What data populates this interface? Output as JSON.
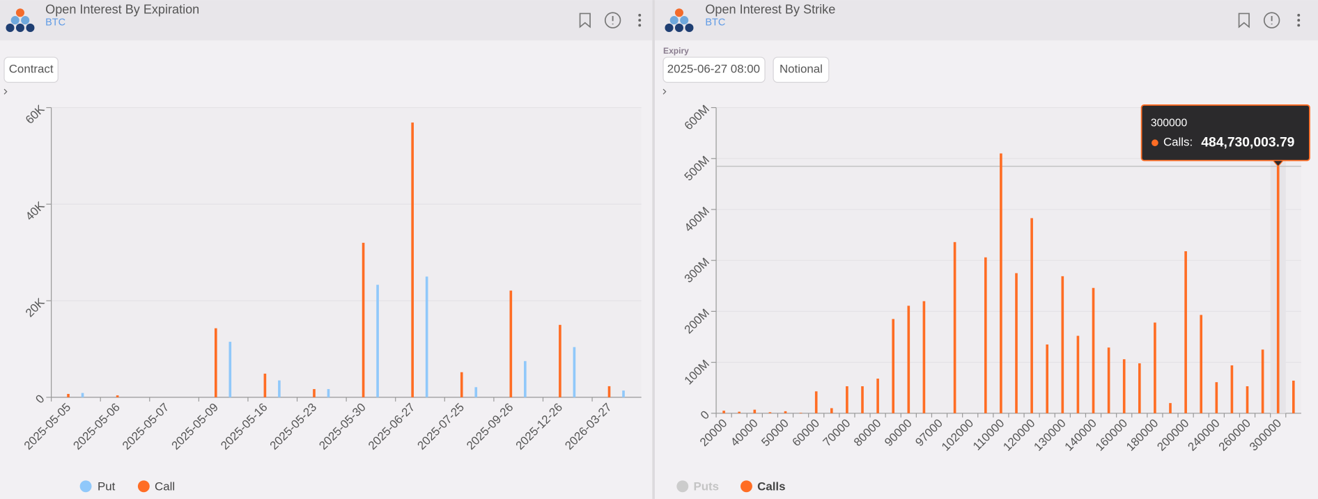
{
  "panels": [
    {
      "title": "Open Interest By Expiration",
      "subtitle": "BTC",
      "controls": [
        "Contract"
      ]
    },
    {
      "title": "Open Interest By Strike",
      "subtitle": "BTC",
      "filter_label": "Expiry",
      "controls": [
        "2025-06-27 08:00",
        "Notional"
      ]
    }
  ],
  "chart_data": [
    {
      "type": "bar",
      "categories": [
        "2025-05-05",
        "2025-05-06",
        "2025-05-07",
        "2025-05-09",
        "2025-05-16",
        "2025-05-23",
        "2025-05-30",
        "2025-06-27",
        "2025-07-25",
        "2025-09-26",
        "2025-12-26",
        "2026-03-27"
      ],
      "series": [
        {
          "name": "Put",
          "color": "#90c8fa",
          "values": [
            900,
            0,
            0,
            11500,
            3500,
            1700,
            23300,
            25000,
            2100,
            7500,
            10400,
            1400
          ]
        },
        {
          "name": "Call",
          "color": "#ff6d24",
          "values": [
            700,
            400,
            0,
            14300,
            4900,
            1700,
            32000,
            56900,
            5200,
            22100,
            15000,
            2300
          ]
        }
      ],
      "ylim": [
        0,
        60000
      ],
      "yticks": [
        0,
        {
          "value": 20000,
          "label": "20K"
        },
        {
          "value": 40000,
          "label": "40K"
        },
        {
          "value": 60000,
          "label": "60K"
        }
      ],
      "grid": true
    },
    {
      "type": "bar",
      "categories": [
        "20000",
        null,
        "40000",
        null,
        "50000",
        null,
        "60000",
        null,
        "70000",
        null,
        "80000",
        null,
        "90000",
        null,
        "97000",
        null,
        "102000",
        null,
        "110000",
        null,
        "120000",
        null,
        "130000",
        null,
        "140000",
        null,
        "160000",
        null,
        "180000",
        null,
        "200000",
        null,
        "240000",
        null,
        "260000",
        null,
        "300000",
        null
      ],
      "series": [
        {
          "name": "Puts",
          "color": "#cccccc",
          "visible": false
        },
        {
          "name": "Calls",
          "color": "#ff6d24",
          "values": [
            5000000,
            3000000,
            7000000,
            2000000,
            4000000,
            1000000,
            43000000,
            10000000,
            53000000,
            53000000,
            68000000,
            185000000,
            211000000,
            220000000,
            0,
            336000000,
            0,
            306000000,
            510000000,
            275000000,
            383000000,
            135000000,
            269000000,
            152000000,
            246000000,
            129000000,
            106000000,
            98000000,
            178000000,
            20000000,
            318000000,
            193000000,
            61000000,
            94000000,
            53000000,
            125000000,
            484730003.79,
            64000000
          ]
        }
      ],
      "ylim": [
        0,
        600000000
      ],
      "yticks": [
        0,
        {
          "value": 100000000,
          "label": "100M"
        },
        {
          "value": 200000000,
          "label": "200M"
        },
        {
          "value": 300000000,
          "label": "300M"
        },
        {
          "value": 400000000,
          "label": "400M"
        },
        {
          "value": 500000000,
          "label": "500M"
        },
        {
          "value": 600000000,
          "label": "600M"
        }
      ],
      "grid": true,
      "tooltip": {
        "title": "300000",
        "label": "Calls:",
        "value": "484,730,003.79"
      }
    }
  ]
}
